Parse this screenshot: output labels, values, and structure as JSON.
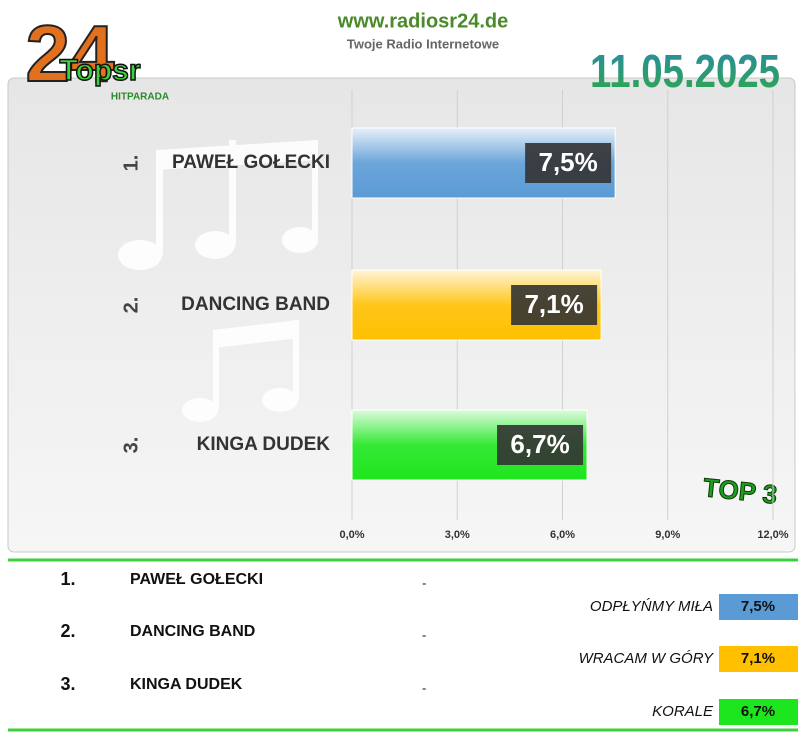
{
  "header": {
    "logo_number": "24",
    "logo_name": "Topsr",
    "logo_sub": "HITPARADA",
    "site": "www.radiosr24.de",
    "tagline": "Twoje Radio Internetowe",
    "date": "11.05.2025"
  },
  "chart_data": {
    "type": "bar",
    "orientation": "horizontal",
    "ranks": [
      "1.",
      "2.",
      "3."
    ],
    "categories": [
      "PAWEŁ GOŁECKI",
      "DANCING BAND",
      "KINGA DUDEK"
    ],
    "values": [
      7.5,
      7.1,
      6.7
    ],
    "value_labels": [
      "7,5%",
      "7,1%",
      "6,7%"
    ],
    "colors": [
      "#5b9bd5",
      "#ffc000",
      "#1ee61e"
    ],
    "xlim": [
      0,
      12
    ],
    "xticks": [
      {
        "value": 0,
        "label": "0,0%"
      },
      {
        "value": 3,
        "label": "3,0%"
      },
      {
        "value": 6,
        "label": "6,0%"
      },
      {
        "value": 9,
        "label": "9,0%"
      },
      {
        "value": 12,
        "label": "12,0%"
      }
    ],
    "grid": true,
    "badge": "TOP 3"
  },
  "list": {
    "rows": [
      {
        "rank": "1.",
        "artist": "PAWEŁ GOŁECKI",
        "dash": "-",
        "song": "ODPŁYŃMY MIŁA",
        "score": "7,5%"
      },
      {
        "rank": "2.",
        "artist": "DANCING BAND",
        "dash": "-",
        "song": "WRACAM W GÓRY",
        "score": "7,1%"
      },
      {
        "rank": "3.",
        "artist": "KINGA DUDEK",
        "dash": "-",
        "song": "KORALE",
        "score": "6,7%"
      }
    ]
  }
}
